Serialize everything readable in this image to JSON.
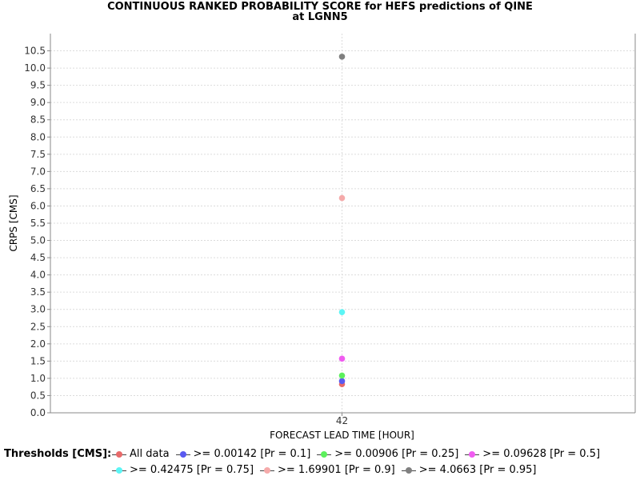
{
  "chart_data": {
    "type": "scatter",
    "title": [
      "CONTINUOUS RANKED PROBABILITY SCORE for HEFS predictions of QINE",
      "at LGNN5"
    ],
    "xlabel": "FORECAST LEAD TIME [HOUR]",
    "ylabel": "CRPS [CMS]",
    "ylim": [
      0,
      11
    ],
    "yticks": [
      0.0,
      0.5,
      1.0,
      1.5,
      2.0,
      2.5,
      3.0,
      3.5,
      4.0,
      4.5,
      5.0,
      5.5,
      6.0,
      6.5,
      7.0,
      7.5,
      8.0,
      8.5,
      9.0,
      9.5,
      10.0,
      10.5
    ],
    "ytick_labels": [
      "0.0",
      "0.5",
      "1.0",
      "1.5",
      "2.0",
      "2.5",
      "3.0",
      "3.5",
      "4.0",
      "4.5",
      "5.0",
      "5.5",
      "6.0",
      "6.5",
      "7.0",
      "7.5",
      "8.0",
      "8.5",
      "9.0",
      "9.5",
      "10.0",
      "10.5"
    ],
    "categories": [
      "42"
    ],
    "grid": true,
    "legend_title": "Thresholds [CMS]:",
    "legend_placement": "bottom",
    "series": [
      {
        "name": "All data",
        "color": "#e86a6a",
        "values": [
          0.83
        ]
      },
      {
        "name": ">= 0.00142 [Pr = 0.1]",
        "color": "#5a5af0",
        "values": [
          0.92
        ]
      },
      {
        "name": ">= 0.00906 [Pr = 0.25]",
        "color": "#5cf05c",
        "values": [
          1.08
        ]
      },
      {
        "name": ">= 0.09628 [Pr = 0.5]",
        "color": "#f05cf0",
        "values": [
          1.57
        ]
      },
      {
        "name": ">= 0.42475 [Pr = 0.75]",
        "color": "#5cf5f5",
        "values": [
          2.92
        ]
      },
      {
        "name": ">= 1.69901 [Pr = 0.9]",
        "color": "#f5aaaa",
        "values": [
          6.23
        ]
      },
      {
        "name": ">= 4.0663 [Pr = 0.95]",
        "color": "#808080",
        "values": [
          10.33
        ]
      }
    ],
    "legend_rows": [
      [
        0,
        1,
        2,
        3
      ],
      [
        4,
        5,
        6
      ]
    ]
  }
}
